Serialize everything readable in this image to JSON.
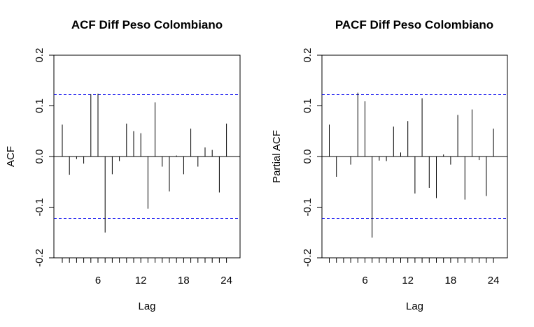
{
  "chart_data": [
    {
      "type": "bar",
      "title": "ACF Diff Peso Colombiano",
      "xlabel": "Lag",
      "ylabel": "ACF",
      "xlim": [
        0,
        24.5
      ],
      "ylim": [
        -0.2,
        0.2
      ],
      "xticks": [
        6,
        12,
        18,
        24
      ],
      "yticks": [
        -0.2,
        -0.1,
        0.0,
        0.1,
        0.2
      ],
      "ytick_labels": [
        "-0.2",
        "-0.1",
        "0.0",
        "0.1",
        "0.2"
      ],
      "confidence_bound": 0.122,
      "confidence_color": "#0000ee",
      "lags": [
        1,
        2,
        3,
        4,
        5,
        6,
        7,
        8,
        9,
        10,
        11,
        12,
        13,
        14,
        15,
        16,
        17,
        18,
        19,
        20,
        21,
        22,
        23,
        24
      ],
      "values": [
        0.063,
        -0.036,
        -0.005,
        -0.014,
        0.123,
        0.124,
        -0.15,
        -0.035,
        -0.009,
        0.065,
        0.05,
        0.046,
        -0.103,
        0.107,
        -0.02,
        -0.069,
        0.002,
        -0.035,
        0.055,
        -0.02,
        0.018,
        0.013,
        -0.071,
        0.065
      ]
    },
    {
      "type": "bar",
      "title": "PACF Diff Peso Colombiano",
      "xlabel": "Lag",
      "ylabel": "Partial ACF",
      "xlim": [
        0,
        24.5
      ],
      "ylim": [
        -0.2,
        0.2
      ],
      "xticks": [
        6,
        12,
        18,
        24
      ],
      "yticks": [
        -0.2,
        -0.1,
        0.0,
        0.1,
        0.2
      ],
      "ytick_labels": [
        "-0.2",
        "-0.1",
        "0.0",
        "0.1",
        "0.2"
      ],
      "confidence_bound": 0.122,
      "confidence_color": "#0000ee",
      "lags": [
        1,
        2,
        3,
        4,
        5,
        6,
        7,
        8,
        9,
        10,
        11,
        12,
        13,
        14,
        15,
        16,
        17,
        18,
        19,
        20,
        21,
        22,
        23,
        24
      ],
      "values": [
        0.063,
        -0.04,
        0.0,
        -0.016,
        0.126,
        0.109,
        -0.16,
        -0.008,
        -0.009,
        0.059,
        0.008,
        0.07,
        -0.073,
        0.115,
        -0.062,
        -0.082,
        0.004,
        -0.016,
        0.082,
        -0.085,
        0.093,
        -0.007,
        -0.078,
        0.055
      ]
    }
  ]
}
